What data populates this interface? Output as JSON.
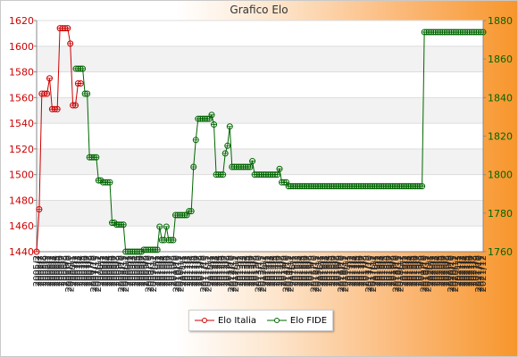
{
  "chart_data": {
    "type": "line",
    "title": "Grafico Elo",
    "grid": true,
    "legend_position": "bottom-center",
    "y_left": {
      "ylim": [
        1440,
        1620
      ],
      "ticks": [
        1440,
        1460,
        1480,
        1500,
        1520,
        1540,
        1560,
        1580,
        1600,
        1620
      ],
      "color": "#cc0000"
    },
    "y_right": {
      "ylim": [
        1760,
        1880
      ],
      "ticks": [
        1760,
        1780,
        1800,
        1820,
        1840,
        1860,
        1880
      ],
      "color": "#006600"
    },
    "series": [
      {
        "name": "Elo Italia",
        "axis": "left",
        "color": "#cc0000",
        "values": [
          1440,
          1473,
          1563,
          1563,
          1563,
          1575,
          1551,
          1551,
          1551,
          1614,
          1614,
          1614,
          1614,
          1602,
          1554,
          1554,
          1571,
          1571
        ]
      },
      {
        "name": "Elo FIDE",
        "axis": "right",
        "color": "#006600",
        "values": [
          1855,
          1855,
          1855,
          1855,
          1842,
          1842,
          1809,
          1809,
          1809,
          1809,
          1797,
          1797,
          1796,
          1796,
          1796,
          1796,
          1775,
          1775,
          1774,
          1774,
          1774,
          1774,
          1760,
          1760,
          1760,
          1760,
          1760,
          1760,
          1760,
          1760,
          1761,
          1761,
          1761,
          1761,
          1761,
          1761,
          1761,
          1773,
          1766,
          1766,
          1773,
          1766,
          1766,
          1766,
          1779,
          1779,
          1779,
          1779,
          1779,
          1779,
          1781,
          1781,
          1804,
          1818,
          1829,
          1829,
          1829,
          1829,
          1829,
          1829,
          1831,
          1826,
          1800,
          1800,
          1800,
          1800,
          1811,
          1815,
          1825,
          1804,
          1804,
          1804,
          1804,
          1804,
          1804,
          1804,
          1804,
          1804,
          1807,
          1800,
          1800,
          1800,
          1800,
          1800,
          1800,
          1800,
          1800,
          1800,
          1800,
          1800,
          1803,
          1796,
          1796,
          1796,
          1794,
          1794,
          1794,
          1794,
          1794,
          1794,
          1794,
          1794,
          1794,
          1794,
          1794,
          1794,
          1794,
          1794,
          1794,
          1794,
          1794,
          1794,
          1794,
          1794,
          1794,
          1794,
          1794,
          1794,
          1794,
          1794,
          1794,
          1794,
          1794,
          1794,
          1794,
          1794,
          1794,
          1794,
          1794,
          1794,
          1794,
          1794,
          1794,
          1794,
          1794,
          1794,
          1794,
          1794,
          1794,
          1794,
          1794,
          1794,
          1794,
          1794,
          1794,
          1794,
          1794,
          1794,
          1794,
          1794,
          1794,
          1794,
          1794,
          1794,
          1874,
          1874,
          1874,
          1874,
          1874,
          1874,
          1874,
          1874,
          1874,
          1874,
          1874,
          1874,
          1874,
          1874,
          1874,
          1874,
          1874,
          1874,
          1874,
          1874,
          1874,
          1874,
          1874,
          1874,
          1874,
          1874,
          1874
        ]
      }
    ],
    "x_tick_labels": [
      "2005/2",
      "2005/7",
      "2005/7",
      "2005/8",
      "2005/9",
      "2006/1",
      "2006/2",
      "2006/3",
      "2006/4",
      "2006/5",
      "2006/6",
      "2006/7",
      "2006/8",
      "2006/9",
      "2006/10",
      "2006/11",
      "2007/1",
      "2007/2",
      "2007/3",
      "2007/4",
      "2007/5",
      "2007/6",
      "2007/7",
      "2007/8",
      "2007/9",
      "2007/10",
      "2007/11",
      "2007/12",
      "2008/1",
      "2008/2",
      "2008/3",
      "2008/4",
      "2008/5",
      "2008/6",
      "2008/7",
      "2008/8",
      "2008/9",
      "2008/10",
      "2008/11",
      "2008/12",
      "2009/1",
      "2009/2",
      "2009/3",
      "2009/4",
      "2009/5",
      "2009/6",
      "2009/7",
      "2009/8",
      "2009/9",
      "2009/10",
      "2009/11",
      "2009/12",
      "2010/1",
      "2010/2",
      "2010/3",
      "2010/4",
      "2010/5",
      "2010/6",
      "2010/7",
      "2010/8",
      "2010/9",
      "2010/10",
      "2010/11",
      "2010/12",
      "2011/1",
      "2011/2",
      "2011/3",
      "2011/4",
      "2011/5",
      "2011/6",
      "2011/7",
      "2011/8",
      "2011/9",
      "2011/10",
      "2011/11",
      "2011/12",
      "2012/1",
      "2012/2",
      "2012/3",
      "2012/4",
      "2012/5",
      "2012/6",
      "2012/7",
      "2012/8",
      "2012/9",
      "2012/10",
      "2012/11",
      "2012/12",
      "2013/1",
      "2013/2",
      "2013/3",
      "2013/4",
      "2013/5",
      "2013/6",
      "2013/7",
      "2013/8",
      "2013/9",
      "2013/10",
      "2013/11",
      "2013/12",
      "2014/1",
      "2014/2",
      "2014/3",
      "2014/4",
      "2014/5",
      "2014/6",
      "2014/7",
      "2014/8",
      "2014/9",
      "2014/10",
      "2014/11",
      "2014/12",
      "2015/1",
      "2015/2",
      "2015/3",
      "2015/4",
      "2015/5",
      "2015/6",
      "2015/7",
      "2015/8",
      "2015/9",
      "2015/10",
      "2015/11",
      "2015/12",
      "2016/1",
      "2016/2",
      "2016/3",
      "2016/4",
      "2016/5",
      "2016/6",
      "2016/7",
      "2016/8",
      "2016/9",
      "2016/10",
      "2016/11",
      "2016/12",
      "2017/1",
      "2017/2",
      "2017/3",
      "2017/4",
      "2017/5",
      "2017/6",
      "2017/7",
      "2017/8",
      "2017/9",
      "2017/10",
      "2017/11",
      "2017/12",
      "2018/1",
      "2018/2",
      "2018/3",
      "2018/4",
      "2018/5",
      "2018/6",
      "2018/7",
      "2018/8",
      "2018/9",
      "2018/10",
      "2018/11",
      "2018/12",
      "2019/1",
      "2019/2",
      "2019/3",
      "2019/4",
      "2019/5",
      "2019/6",
      "2019/7",
      "2019/8",
      "2019/9",
      "2019/10",
      "2019/11",
      "2019/12",
      "2020/1",
      "2020/2",
      "2020/3",
      "2020/4",
      "2020/5",
      "2020/6",
      "2020/7",
      "2020/8",
      "2020/9",
      "2020/10",
      "2020/11",
      "2020/12",
      "2021/1",
      "2021/2",
      "2021/3",
      "2021/4",
      "2021/5",
      "2021/6",
      "2021/7",
      "2021/8",
      "2021/9",
      "2021/10",
      "2021/11",
      "2021/12"
    ]
  }
}
